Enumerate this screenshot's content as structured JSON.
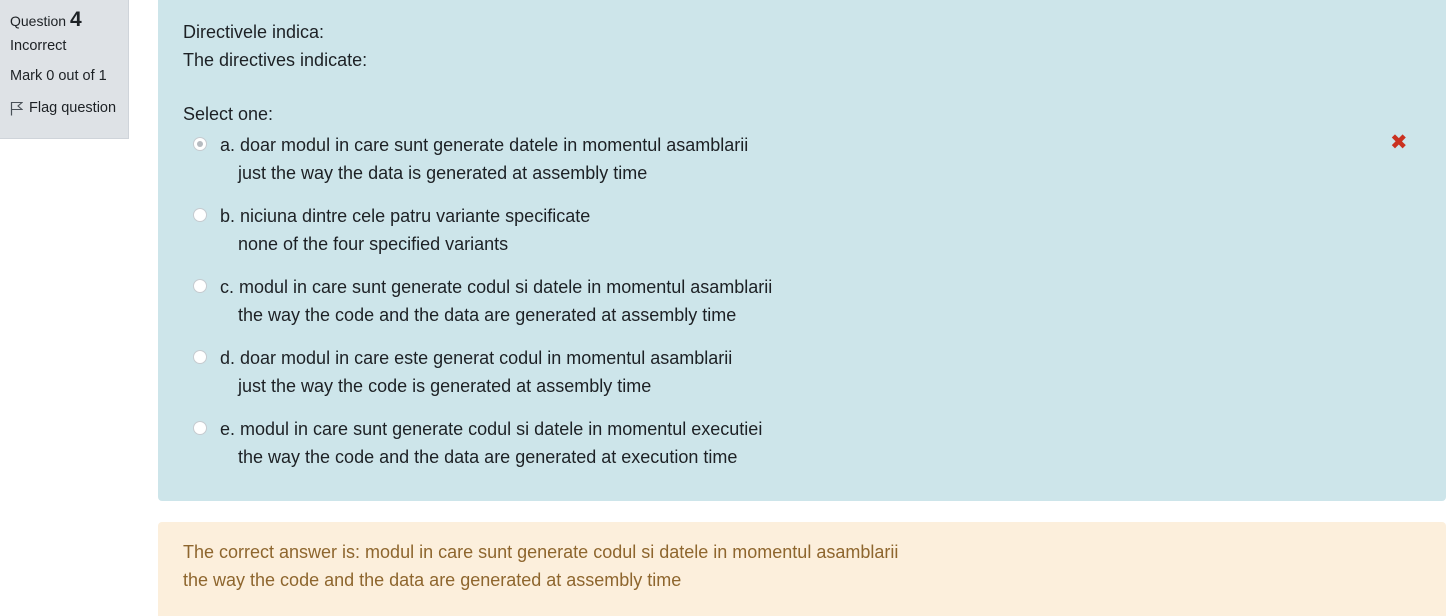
{
  "info": {
    "question_label": "Question",
    "question_number": "4",
    "state": "Incorrect",
    "grade": "Mark 0 out of 1",
    "flag_label": "Flag question"
  },
  "question": {
    "text_ro": "Directivele indica:",
    "text_en": "The directives indicate:",
    "prompt": "Select one:",
    "options": [
      {
        "line1": "a. doar modul in care sunt generate datele in momentul asamblarii",
        "line2": "just the way the data is generated at assembly time",
        "selected": true
      },
      {
        "line1": "b. niciuna dintre cele patru variante specificate",
        "line2": "none of the four specified variants",
        "selected": false
      },
      {
        "line1": "c. modul in care sunt generate codul si datele in momentul asamblarii",
        "line2": "the way the code and the data are generated at assembly time",
        "selected": false
      },
      {
        "line1": "d. doar modul in care este generat codul in momentul asamblarii",
        "line2": "just the way the code is generated at assembly time",
        "selected": false
      },
      {
        "line1": "e. modul in care sunt generate codul si datele in momentul executiei",
        "line2": "the way the code and the data are generated at execution time",
        "selected": false
      }
    ],
    "incorrect_icon": "x-mark-icon"
  },
  "feedback": {
    "line1": "The correct answer is: modul in care sunt generate codul si datele in momentul asamblarii",
    "line2": "the way the code and the data are generated at assembly time"
  },
  "colors": {
    "formulation_bg": "#cde5ea",
    "feedback_bg": "#fcefdc",
    "feedback_text": "#8e662e",
    "incorrect": "#ca3120",
    "info_bg": "#dee2e6"
  }
}
